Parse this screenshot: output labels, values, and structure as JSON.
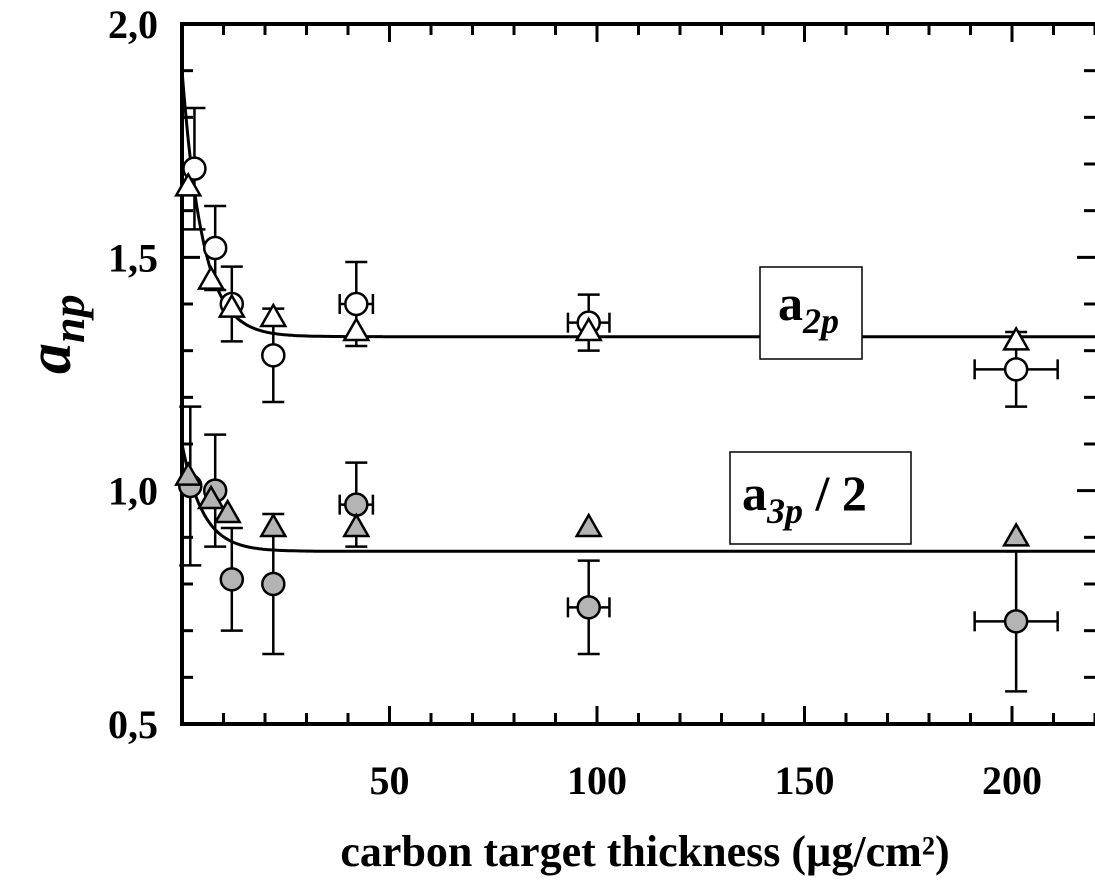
{
  "chart_data": {
    "type": "scatter",
    "title": "",
    "xlabel": "carbon target thickness (µg/cm²)",
    "ylabel": {
      "main": "a",
      "sub": "np"
    },
    "xlim": [
      0,
      220
    ],
    "ylim": [
      0.5,
      2.0
    ],
    "x_ticks": [
      {
        "value": 50,
        "label": "50"
      },
      {
        "value": 100,
        "label": "100"
      },
      {
        "value": 150,
        "label": "150"
      },
      {
        "value": 200,
        "label": "200"
      }
    ],
    "y_ticks": [
      {
        "value": 0.5,
        "label": "0,5"
      },
      {
        "value": 1.0,
        "label": "1,0"
      },
      {
        "value": 1.5,
        "label": "1,5"
      },
      {
        "value": 2.0,
        "label": "2,0"
      }
    ],
    "grid": false,
    "series": [
      {
        "marker": "circle-open",
        "points": [
          {
            "x": 3,
            "y": 1.69,
            "yerr": 0.13
          },
          {
            "x": 8,
            "y": 1.52,
            "yerr": 0.09
          },
          {
            "x": 12,
            "y": 1.4,
            "yerr": 0.08
          },
          {
            "x": 22,
            "y": 1.29,
            "yerr": 0.1
          },
          {
            "x": 42,
            "y": 1.4,
            "yerr": 0.09,
            "xerr": 4
          },
          {
            "x": 98,
            "y": 1.36,
            "yerr": 0.06,
            "xerr": 5
          },
          {
            "x": 201,
            "y": 1.26,
            "yerr": 0.08,
            "xerr": 10
          }
        ]
      },
      {
        "marker": "triangle-open",
        "points": [
          {
            "x": 1.5,
            "y": 1.65
          },
          {
            "x": 7,
            "y": 1.45
          },
          {
            "x": 12,
            "y": 1.39
          },
          {
            "x": 22,
            "y": 1.37
          },
          {
            "x": 42,
            "y": 1.34
          },
          {
            "x": 98,
            "y": 1.34
          },
          {
            "x": 201,
            "y": 1.32
          }
        ]
      },
      {
        "marker": "circle-filled",
        "points": [
          {
            "x": 2,
            "y": 1.01,
            "yerr": 0.17
          },
          {
            "x": 8,
            "y": 1.0,
            "yerr": 0.12
          },
          {
            "x": 12,
            "y": 0.81,
            "yerr": 0.11
          },
          {
            "x": 22,
            "y": 0.8,
            "yerr": 0.15
          },
          {
            "x": 42,
            "y": 0.97,
            "yerr": 0.09,
            "xerr": 4
          },
          {
            "x": 98,
            "y": 0.75,
            "yerr": 0.1,
            "xerr": 5
          },
          {
            "x": 201,
            "y": 0.72,
            "yerr": 0.15,
            "xerr": 10
          }
        ]
      },
      {
        "marker": "triangle-filled",
        "points": [
          {
            "x": 1.5,
            "y": 1.03
          },
          {
            "x": 7,
            "y": 0.98
          },
          {
            "x": 11,
            "y": 0.95
          },
          {
            "x": 22,
            "y": 0.92
          },
          {
            "x": 42,
            "y": 0.92
          },
          {
            "x": 98,
            "y": 0.92
          },
          {
            "x": 201,
            "y": 0.9
          }
        ]
      }
    ],
    "fits": [
      {
        "type": "exponential",
        "asymptote": 1.33,
        "y_at_0": 1.9,
        "decay_length": 5
      },
      {
        "type": "exponential",
        "asymptote": 0.87,
        "y_at_0": 1.1,
        "decay_length": 5
      }
    ],
    "annotations": [
      {
        "main": "a",
        "sub": "2p",
        "suffix": ""
      },
      {
        "main": "a",
        "sub": "3p",
        "suffix": " / 2"
      }
    ],
    "colors": {
      "axis": "#000000",
      "open_fill": "#ffffff",
      "filled_fill": "#b4b4b4"
    }
  }
}
